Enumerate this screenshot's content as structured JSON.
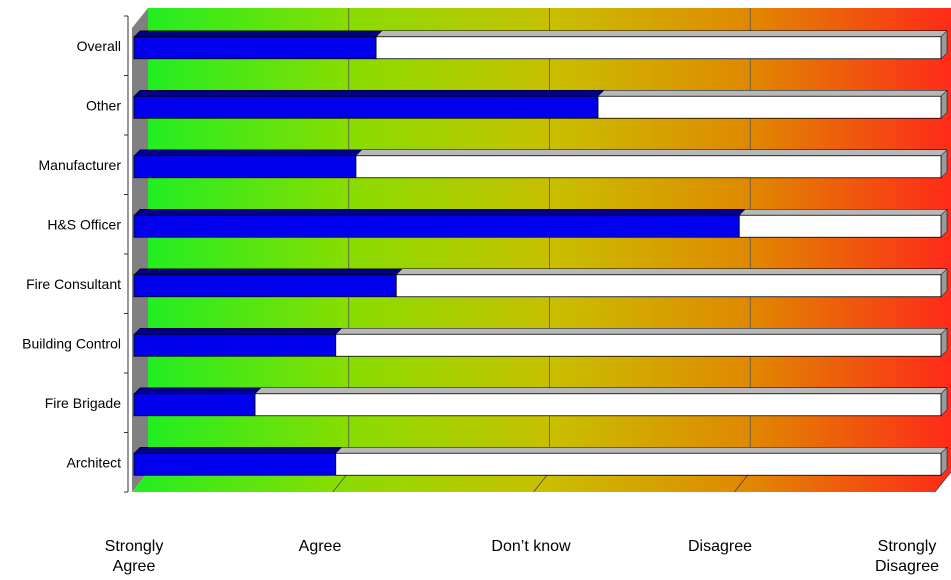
{
  "chart_data": {
    "type": "bar",
    "orientation": "horizontal",
    "stacked": true,
    "three_d": true,
    "categories": [
      "Overall",
      "Other",
      "Manufacturer",
      "H&S Officer",
      "Fire Consultant",
      "Building Control",
      "Fire Brigade",
      "Architect"
    ],
    "values": [
      1.2,
      2.3,
      1.1,
      3.0,
      1.3,
      1.0,
      0.6,
      1.0
    ],
    "remainder": [
      2.8,
      1.7,
      2.9,
      1.0,
      2.7,
      3.0,
      3.4,
      3.0
    ],
    "xlim": [
      0,
      4
    ],
    "scale_labels": [
      [
        "Strongly",
        "Agree"
      ],
      [
        "Agree"
      ],
      [
        "Don’t know"
      ],
      [
        "Disagree"
      ],
      [
        "Strongly",
        "Disagree"
      ]
    ],
    "background_gradient": [
      "#22ee22",
      "#88dd00",
      "#c8c000",
      "#e08800",
      "#ff2a1a"
    ],
    "colors": {
      "value": "#0000ee",
      "remainder": "#ffffff",
      "wall_left": "#808080",
      "floor": "#33ee33"
    },
    "grid": true,
    "legend": "none"
  }
}
